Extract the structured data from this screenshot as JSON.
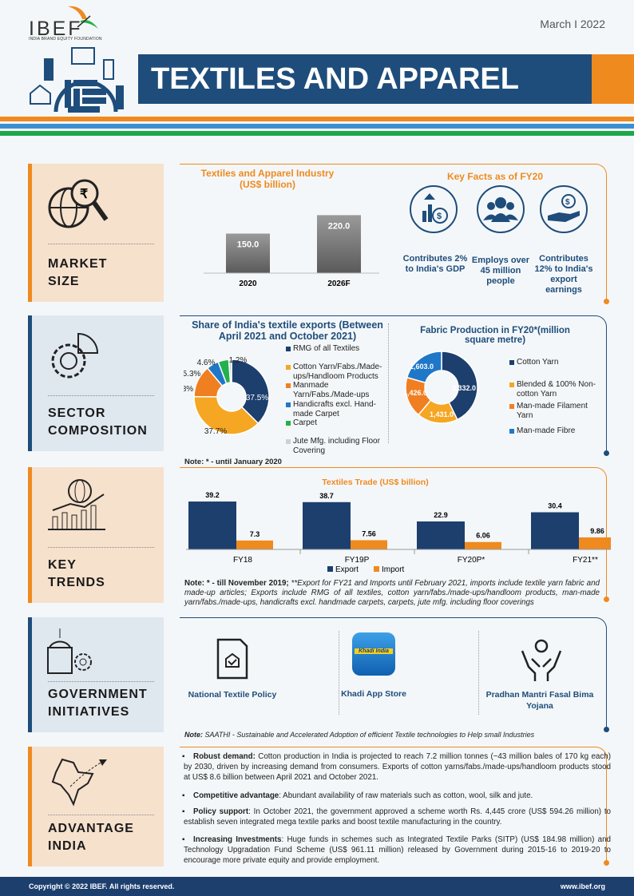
{
  "header": {
    "logo": "IBEF",
    "logo_sub": "INDIA BRAND EQUITY FOUNDATION",
    "date": "March I 2022",
    "title": "TEXTILES AND APPAREL"
  },
  "colors": {
    "dark_blue": "#1e4d7b",
    "orange": "#ef8a1f",
    "light_orange": "#f5a623",
    "blue": "#1f77c8",
    "green": "#22b14c",
    "peach": "#f6e1cd",
    "light_blue": "#dfe7ef"
  },
  "sections": {
    "market_size": {
      "label_1": "MARKET",
      "label_2": "SIZE",
      "icon": "rupee-globe-magnifier-icon"
    },
    "sector_composition": {
      "label_1": "SECTOR",
      "label_2": "COMPOSITION",
      "icon": "gear-pie-icon"
    },
    "key_trends": {
      "label_1": "KEY",
      "label_2": "TRENDS",
      "icon": "globe-bar-chart-icon"
    },
    "government_initiatives": {
      "label_1": "GOVERNMENT",
      "label_2": "INITIATIVES",
      "icon": "government-building-icon"
    },
    "advantage_india": {
      "label_1": "ADVANTAGE",
      "label_2": "INDIA",
      "icon": "india-map-plane-icon"
    }
  },
  "chart_data": [
    {
      "type": "bar",
      "title": "Textiles and Apparel Industry (US$ billion)",
      "categories": [
        "2020",
        "2026F"
      ],
      "values": [
        150.0,
        220.0
      ],
      "value_labels": [
        "150.0",
        "220.0"
      ]
    },
    {
      "type": "pie",
      "title": "Share of India's textile exports (Between April 2021 and October 2021)",
      "categories": [
        "RMG of all Textiles",
        "Cotton Yarn/Fabs./Made-ups/Handloom Products",
        "Manmade Yarn/Fabs./Made-ups",
        "Handicrafts excl. Hand-made Carpet",
        "Carpet",
        "Jute Mfg. including Floor Covering"
      ],
      "values": [
        37.5,
        37.7,
        13.8,
        5.3,
        4.6,
        1.2
      ],
      "value_labels": [
        "37.5%",
        "37.7%",
        "13.8%",
        "5.3%",
        "4.6%",
        "1.2%"
      ],
      "colors": [
        "#1c3f6e",
        "#f5a623",
        "#f07f22",
        "#1f77c8",
        "#22b14c",
        "#d0d0d0"
      ],
      "legend": "right"
    },
    {
      "type": "pie",
      "title": "Fabric Production in FY20*(million square metre)",
      "categories": [
        "Cotton Yarn",
        "Blended & 100% Non-cotton Yarn",
        "Man-made Filament Yarn",
        "Man-made Fibre"
      ],
      "values": [
        3332.0,
        1431.0,
        1426.0,
        1603.0
      ],
      "value_labels": [
        "3,332.0",
        "1,431.0",
        "1,426.0",
        "1,603.0"
      ],
      "colors": [
        "#1c3f6e",
        "#f5a623",
        "#f07f22",
        "#1f77c8"
      ],
      "legend": "right"
    },
    {
      "type": "bar",
      "title": "Textiles Trade (US$ billion)",
      "categories": [
        "FY18",
        "FY19P",
        "FY20P*",
        "FY21**"
      ],
      "series": [
        {
          "name": "Export",
          "values": [
            39.2,
            38.7,
            22.9,
            30.4
          ],
          "value_labels": [
            "39.2",
            "38.7",
            "22.9",
            "30.4"
          ],
          "color": "#1c3f6e"
        },
        {
          "name": "Import",
          "values": [
            7.3,
            7.56,
            6.06,
            9.86
          ],
          "value_labels": [
            "7.3",
            "7.56",
            "6.06",
            "9.86"
          ],
          "color": "#ef8a1f"
        }
      ],
      "legend": "bottom"
    }
  ],
  "market": {
    "facts_title": "Key Facts as of FY20",
    "facts": [
      {
        "text": "Contributes 2% to India's GDP",
        "icon": "dollar-growth-icon"
      },
      {
        "text": "Employs over 45 million people",
        "icon": "people-icon"
      },
      {
        "text": "Contributes 12% to India's export earnings",
        "icon": "hand-dollar-icon"
      }
    ]
  },
  "sector": {
    "note": "Note: * - until January 2020"
  },
  "trends": {
    "note_bold": "Note: * - till November 2019; ",
    "note": "**Export for FY21 and Imports until February 2021, imports include textile yarn fabric and made-up articles; Exports include RMG of all textiles, cotton yarn/fabs./made-ups/handloom products, man-made yarn/fabs./made-ups, handicrafts excl. handmade carpets, carpets, jute mfg. including floor coverings"
  },
  "government": {
    "items": [
      {
        "label": "National Textile Policy",
        "icon": "policy-document-icon"
      },
      {
        "label": "Khadi App Store",
        "icon": "khadi-india-app-icon",
        "logo_text": "Khadi India"
      },
      {
        "label": "Pradhan Mantri Fasal Bima Yojana",
        "icon": "hands-raised-icon"
      }
    ],
    "note": "Note: SAATHI - Sustainable and Accelerated Adoption of efficient Textile technologies to Help small Industries"
  },
  "advantage": {
    "bullets": [
      {
        "bold": "Robust demand:",
        "text": " Cotton production in India is projected to reach 7.2 million tonnes (~43 million bales of 170 kg each) by 2030, driven by increasing demand from consumers. Exports of cotton yarns/fabs./made-ups/handloom products stood at US$ 8.6 billion between April 2021 and October 2021."
      },
      {
        "bold": "Competitive advantage",
        "text": ": Abundant availability of raw materials such as cotton, wool, silk and jute."
      },
      {
        "bold": "Policy support",
        "text": ": In October 2021, the government approved a scheme worth Rs. 4,445 crore (US$ 594.26 million) to establish seven integrated mega textile parks and boost textile manufacturing in the country."
      },
      {
        "bold": "Increasing Investments",
        "text": ": Huge funds in schemes such as Integrated Textile Parks (SITP) (US$ 184.98 million) and Technology Upgradation Fund Scheme (US$ 961.11 million) released by Government during 2015-16 to 2019-20 to encourage more private equity and provide employment."
      }
    ]
  },
  "footer": {
    "copyright": "Copyright © 2022 IBEF. All rights reserved.",
    "url": "www.ibef.org"
  }
}
